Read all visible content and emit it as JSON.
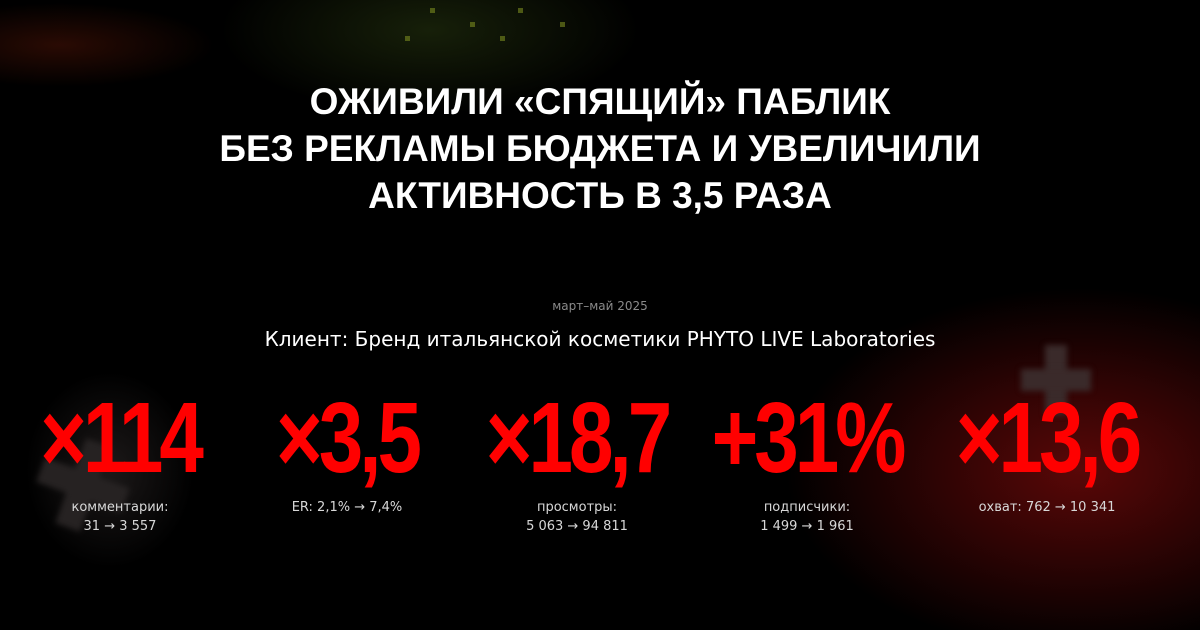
{
  "headline": {
    "lines": [
      "Оживили «спящий» паблик",
      "без рекламы бюджета и увеличили",
      "активность в 3,5 раза"
    ]
  },
  "period": "март–май 2025",
  "client": "Клиент: Бренд итальянской косметики PHYTO LIVE Laboratories",
  "stats": [
    {
      "value": "×114",
      "label_line1": "комментарии:",
      "label_line2": "31 → 3 557"
    },
    {
      "value": "×3,5",
      "label_line1": "ER: 2,1% → 7,4%",
      "label_line2": ""
    },
    {
      "value": "×18,7",
      "label_line1": "просмотры:",
      "label_line2": "5 063 → 94 811"
    },
    {
      "value": "+31%",
      "label_line1": "подписчики:",
      "label_line2": "1 499 → 1 961"
    },
    {
      "value": "×13,6",
      "label_line1": "охват: 762 → 10 341",
      "label_line2": ""
    }
  ],
  "colors": {
    "accent": "#ff0000",
    "background": "#000000",
    "text": "#ffffff"
  }
}
